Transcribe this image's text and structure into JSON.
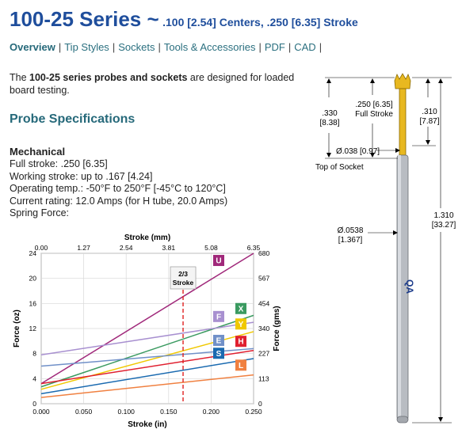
{
  "header": {
    "title": "100-25 Series ~",
    "subtitle": ".100 [2.54] Centers, .250 [6.35] Stroke"
  },
  "nav": {
    "items": [
      "Overview",
      "Tip Styles",
      "Sockets",
      "Tools & Accessories",
      "PDF",
      "CAD"
    ],
    "active": "Overview"
  },
  "intro": {
    "prefix": "The ",
    "bold": "100-25 series probes and sockets",
    "suffix": " are designed for loaded board testing."
  },
  "section_title": "Probe Specifications",
  "mechanical": {
    "heading": "Mechanical",
    "lines": [
      "Full stroke: .250 [6.35]",
      "Working stroke: up to .167 [4.24]",
      "Operating temp.: -50°F to 250°F [-45°C to 120°C]",
      "Current rating: 12.0 Amps (for H tube, 20.0 Amps)",
      "Spring Force:"
    ]
  },
  "chart_data": {
    "type": "line",
    "xlabel": "Stroke (in)",
    "x2label": "Stroke (mm)",
    "ylabel": "Force (oz)",
    "y2label": "Force (gms)",
    "xlim": [
      0,
      0.25
    ],
    "ylim": [
      0,
      24
    ],
    "x_ticks": [
      "0.000",
      "0.050",
      "0.100",
      "0.150",
      "0.200",
      "0.250"
    ],
    "x2_ticks": [
      "0.00",
      "1.27",
      "2.54",
      "3.81",
      "5.08",
      "6.35"
    ],
    "y_ticks": [
      "0",
      "4",
      "8",
      "12",
      "16",
      "20",
      "24"
    ],
    "y2_ticks": [
      "0",
      "113",
      "227",
      "340",
      "454",
      "567",
      "680"
    ],
    "grid": true,
    "working_stroke": {
      "x": 0.167,
      "label_line1": "2/3",
      "label_line2": "Stroke",
      "color": "#e02020"
    },
    "series": [
      {
        "name": "U",
        "color": "#a0287a",
        "x": [
          0,
          0.25
        ],
        "y": [
          3.2,
          24
        ]
      },
      {
        "name": "X",
        "color": "#3a9a60",
        "x": [
          0,
          0.25
        ],
        "y": [
          2.7,
          14.1
        ]
      },
      {
        "name": "F",
        "color": "#a890d0",
        "x": [
          0,
          0.25
        ],
        "y": [
          7.8,
          13.0
        ]
      },
      {
        "name": "Y",
        "color": "#f0c800",
        "x": [
          0,
          0.25
        ],
        "y": [
          2.3,
          11.5
        ]
      },
      {
        "name": "E",
        "color": "#7090c8",
        "x": [
          0,
          0.25
        ],
        "y": [
          6.0,
          8.8
        ]
      },
      {
        "name": "H",
        "color": "#e02030",
        "x": [
          0,
          0.25
        ],
        "y": [
          3.2,
          8.5
        ]
      },
      {
        "name": "S",
        "color": "#1a6ab0",
        "x": [
          0,
          0.25
        ],
        "y": [
          1.6,
          7.2
        ]
      },
      {
        "name": "L",
        "color": "#f08040",
        "x": [
          0,
          0.25
        ],
        "y": [
          1.0,
          4.6
        ]
      }
    ]
  },
  "probe_diagram": {
    "dim_overall": [
      "1.310",
      "[33.27]"
    ],
    "dim_310": [
      ".310",
      "[7.87]"
    ],
    "dim_330": [
      ".330",
      "[8.38]"
    ],
    "dim_stroke": [
      ".250 [6.35]",
      "Full Stroke"
    ],
    "dim_038": "Ø.038 [0.97]",
    "top_of_socket": "Top of Socket",
    "dim_0538": [
      "Ø.0538",
      "[1.367]"
    ],
    "brand": "QA",
    "colors": {
      "plunger": "#e8b820",
      "barrel": "#b8bcc2"
    }
  }
}
